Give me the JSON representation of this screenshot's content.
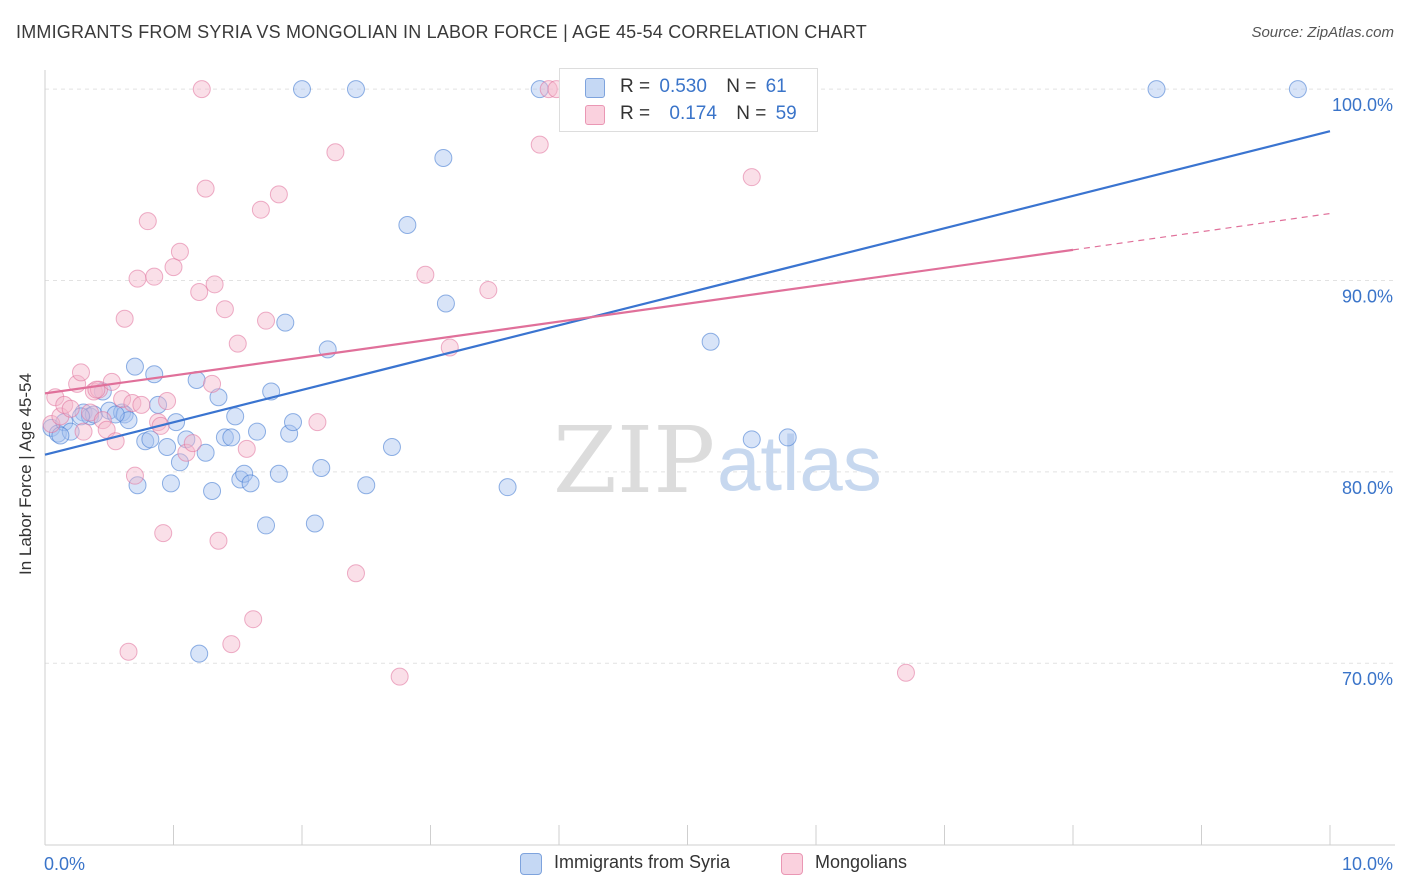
{
  "header": {
    "title": "IMMIGRANTS FROM SYRIA VS MONGOLIAN IN LABOR FORCE | AGE 45-54 CORRELATION CHART",
    "source": "Source: ZipAtlas.com"
  },
  "watermark": {
    "zip": "ZIP",
    "atlas": "atlas"
  },
  "legend_top": {
    "rows": [
      {
        "r_label": "R =",
        "r_value": "0.530",
        "n_label": "N =",
        "n_value": "61",
        "color": "#a8c4ef"
      },
      {
        "r_label": "R =",
        "r_value": "0.174",
        "n_label": "N =",
        "n_value": "59",
        "color": "#f5b8cb"
      }
    ]
  },
  "legend_bottom": {
    "items": [
      {
        "label": "Immigrants from Syria",
        "color": "#a8c4ef"
      },
      {
        "label": "Mongolians",
        "color": "#f5b8cb"
      }
    ]
  },
  "chart_data": {
    "type": "scatter",
    "title": "IMMIGRANTS FROM SYRIA VS MONGOLIAN IN LABOR FORCE | AGE 45-54 CORRELATION CHART",
    "xlabel": "",
    "ylabel": "In Labor Force | Age 45-54",
    "xlim": [
      0,
      10
    ],
    "ylim": [
      60.5,
      101
    ],
    "x_tick_labels": [
      {
        "value": 0,
        "label": "0.0%"
      },
      {
        "value": 10,
        "label": "10.0%"
      }
    ],
    "y_tick_labels": [
      {
        "value": 70,
        "label": "70.0%"
      },
      {
        "value": 80,
        "label": "80.0%"
      },
      {
        "value": 90,
        "label": "90.0%"
      },
      {
        "value": 100,
        "label": "100.0%"
      }
    ],
    "grid": true,
    "colors": {
      "syria": "#3a74d0",
      "mongolian": "#e0709a",
      "syria_fill": "#a8c4ef",
      "mongolian_fill": "#f5b8cb"
    },
    "series": [
      {
        "name": "Immigrants from Syria",
        "r": 0.53,
        "n": 61,
        "trend": {
          "x": [
            0.0,
            10.0
          ],
          "y": [
            80.9,
            97.8
          ]
        },
        "points": [
          [
            0.05,
            82.3
          ],
          [
            0.1,
            82.0
          ],
          [
            0.15,
            82.6
          ],
          [
            0.2,
            82.1
          ],
          [
            0.3,
            83.1
          ],
          [
            0.35,
            82.9
          ],
          [
            0.38,
            83.0
          ],
          [
            0.45,
            84.2
          ],
          [
            0.5,
            83.2
          ],
          [
            0.6,
            83.1
          ],
          [
            0.62,
            83.0
          ],
          [
            0.65,
            82.7
          ],
          [
            0.7,
            85.5
          ],
          [
            0.72,
            79.3
          ],
          [
            0.78,
            81.6
          ],
          [
            0.82,
            81.7
          ],
          [
            0.85,
            85.1
          ],
          [
            0.88,
            83.5
          ],
          [
            0.95,
            81.3
          ],
          [
            0.98,
            79.4
          ],
          [
            1.02,
            82.6
          ],
          [
            1.05,
            80.5
          ],
          [
            1.1,
            81.7
          ],
          [
            1.18,
            84.8
          ],
          [
            1.2,
            70.5
          ],
          [
            1.25,
            81.0
          ],
          [
            1.3,
            79.0
          ],
          [
            1.35,
            83.9
          ],
          [
            1.4,
            81.8
          ],
          [
            1.45,
            81.8
          ],
          [
            1.48,
            82.9
          ],
          [
            1.52,
            79.6
          ],
          [
            1.55,
            79.9
          ],
          [
            1.6,
            79.4
          ],
          [
            1.65,
            82.1
          ],
          [
            1.72,
            77.2
          ],
          [
            1.76,
            84.2
          ],
          [
            1.82,
            79.9
          ],
          [
            1.87,
            87.8
          ],
          [
            1.9,
            82.0
          ],
          [
            1.93,
            82.6
          ],
          [
            2.0,
            100.0
          ],
          [
            2.1,
            77.3
          ],
          [
            2.15,
            80.2
          ],
          [
            2.2,
            86.4
          ],
          [
            2.42,
            100.0
          ],
          [
            2.5,
            79.3
          ],
          [
            2.7,
            81.3
          ],
          [
            2.82,
            92.9
          ],
          [
            3.1,
            96.4
          ],
          [
            3.12,
            88.8
          ],
          [
            3.6,
            79.2
          ],
          [
            3.85,
            100.0
          ],
          [
            5.18,
            86.8
          ],
          [
            5.5,
            81.7
          ],
          [
            5.78,
            81.8
          ],
          [
            8.65,
            100.0
          ],
          [
            9.75,
            100.0
          ],
          [
            0.12,
            81.9
          ],
          [
            0.28,
            82.9
          ],
          [
            0.55,
            83.0
          ]
        ]
      },
      {
        "name": "Mongolians",
        "r": 0.174,
        "n": 59,
        "trend": {
          "x": [
            0.0,
            8.0
          ],
          "y": [
            84.1,
            91.6
          ]
        },
        "trend_dashed": {
          "x": [
            8.0,
            10.0
          ],
          "y": [
            91.6,
            93.5
          ]
        },
        "points": [
          [
            0.05,
            82.5
          ],
          [
            0.08,
            83.9
          ],
          [
            0.12,
            82.9
          ],
          [
            0.15,
            83.5
          ],
          [
            0.2,
            83.3
          ],
          [
            0.25,
            84.6
          ],
          [
            0.28,
            85.2
          ],
          [
            0.3,
            82.1
          ],
          [
            0.35,
            83.1
          ],
          [
            0.38,
            84.2
          ],
          [
            0.42,
            84.3
          ],
          [
            0.45,
            82.7
          ],
          [
            0.48,
            82.2
          ],
          [
            0.52,
            84.7
          ],
          [
            0.55,
            81.6
          ],
          [
            0.6,
            83.8
          ],
          [
            0.62,
            88.0
          ],
          [
            0.65,
            70.6
          ],
          [
            0.68,
            83.6
          ],
          [
            0.7,
            79.8
          ],
          [
            0.72,
            90.1
          ],
          [
            0.75,
            83.5
          ],
          [
            0.8,
            93.1
          ],
          [
            0.85,
            90.2
          ],
          [
            0.88,
            82.6
          ],
          [
            0.9,
            82.4
          ],
          [
            0.92,
            76.8
          ],
          [
            0.95,
            83.7
          ],
          [
            1.0,
            90.7
          ],
          [
            1.05,
            91.5
          ],
          [
            1.1,
            81.0
          ],
          [
            1.15,
            81.5
          ],
          [
            1.2,
            89.4
          ],
          [
            1.22,
            100.0
          ],
          [
            1.25,
            94.8
          ],
          [
            1.3,
            84.6
          ],
          [
            1.32,
            89.8
          ],
          [
            1.35,
            76.4
          ],
          [
            1.4,
            88.5
          ],
          [
            1.45,
            71.0
          ],
          [
            1.5,
            86.7
          ],
          [
            1.57,
            81.2
          ],
          [
            1.62,
            72.3
          ],
          [
            1.68,
            93.7
          ],
          [
            1.72,
            87.9
          ],
          [
            1.82,
            94.5
          ],
          [
            2.12,
            82.6
          ],
          [
            2.26,
            96.7
          ],
          [
            2.42,
            74.7
          ],
          [
            2.76,
            69.3
          ],
          [
            2.96,
            90.3
          ],
          [
            3.15,
            86.5
          ],
          [
            3.45,
            89.5
          ],
          [
            3.85,
            97.1
          ],
          [
            3.92,
            100.0
          ],
          [
            3.98,
            100.0
          ],
          [
            5.5,
            95.4
          ],
          [
            6.7,
            69.5
          ],
          [
            0.4,
            84.3
          ]
        ]
      }
    ]
  }
}
